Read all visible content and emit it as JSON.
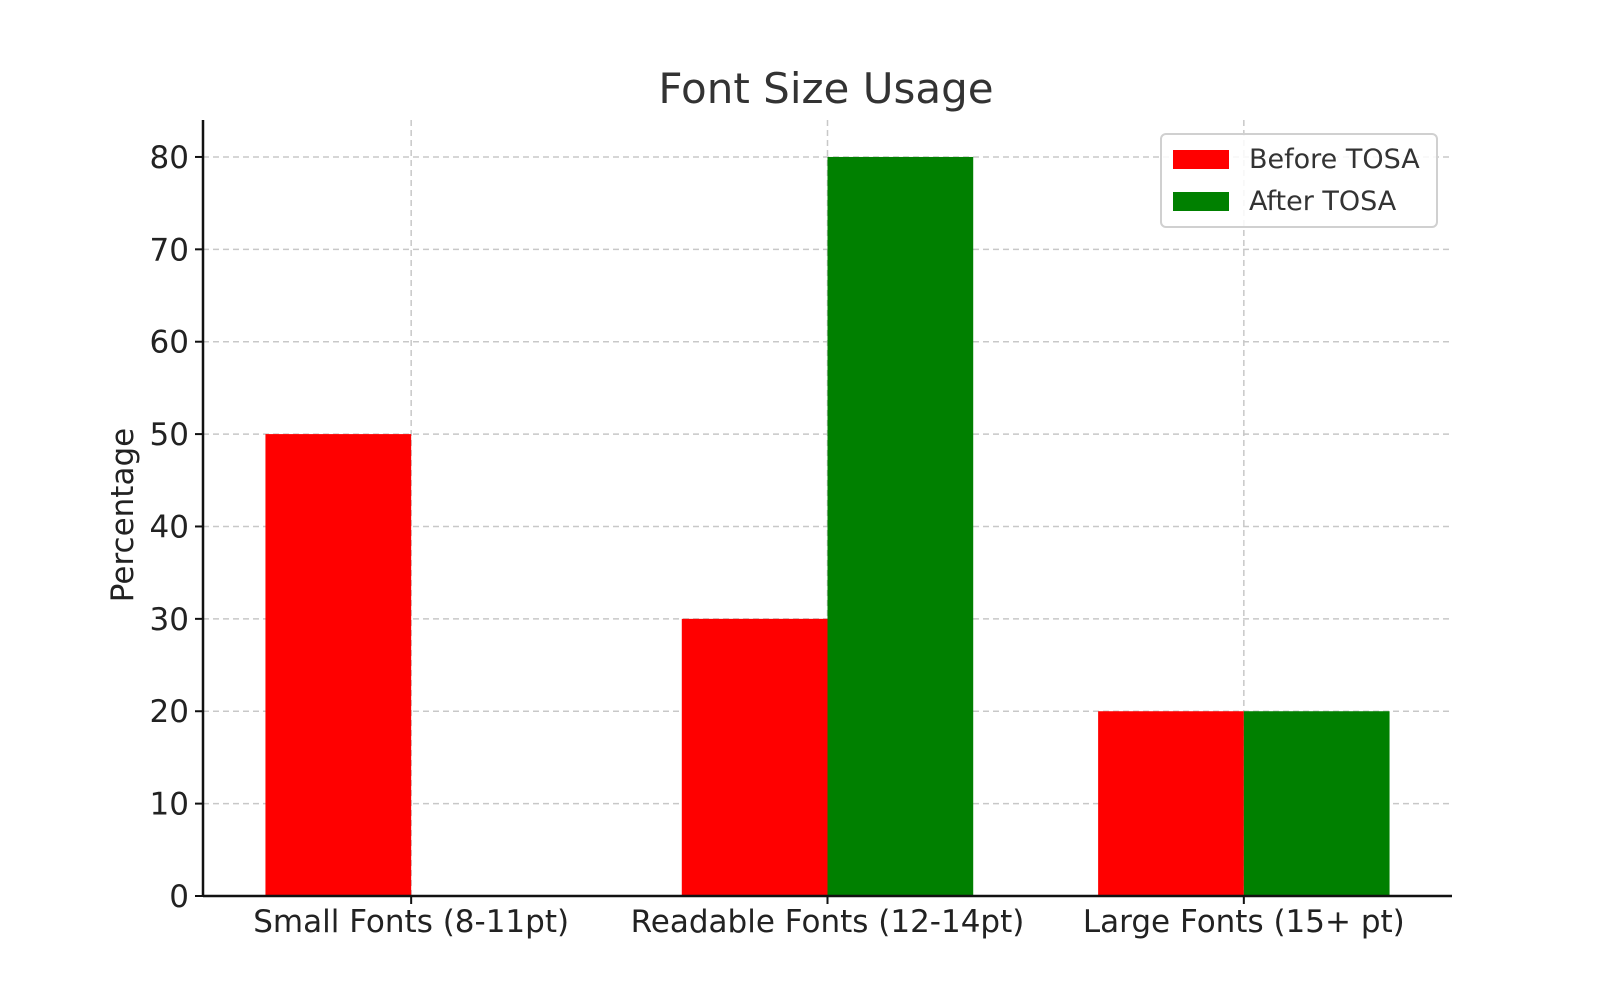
{
  "chart_data": {
    "type": "bar",
    "title": "Font Size Usage",
    "xlabel": "",
    "ylabel": "Percentage",
    "categories": [
      "Small Fonts (8-11pt)",
      "Readable Fonts (12-14pt)",
      "Large Fonts (15+ pt)"
    ],
    "series": [
      {
        "name": "Before TOSA",
        "color": "#ff0000",
        "values": [
          50,
          30,
          20
        ]
      },
      {
        "name": "After TOSA",
        "color": "#008000",
        "values": [
          0,
          80,
          20
        ]
      }
    ],
    "ylim": [
      0,
      84
    ],
    "yticks": [
      0,
      10,
      20,
      30,
      40,
      50,
      60,
      70,
      80
    ],
    "grid": true,
    "legend_position": "top-right"
  }
}
